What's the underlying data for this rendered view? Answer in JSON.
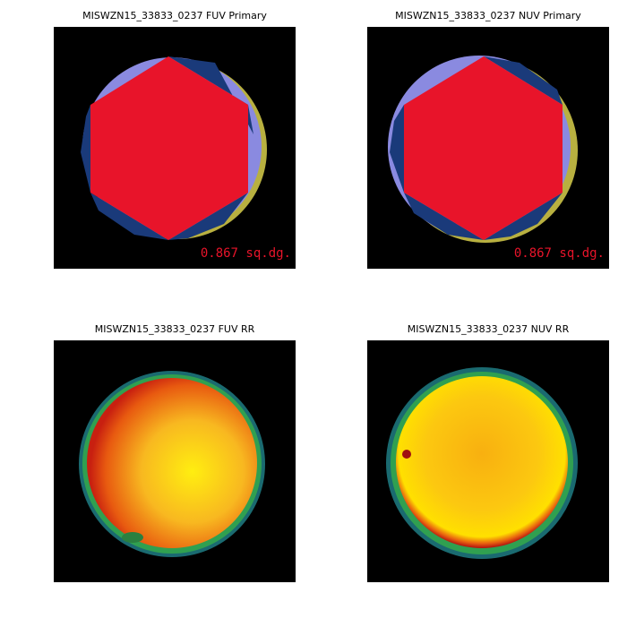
{
  "panels": [
    {
      "title": "MISWZN15_33833_0237 FUV Primary",
      "label": "0.867 sq.dg."
    },
    {
      "title": "MISWZN15_33833_0237 NUV Primary",
      "label": "0.867 sq.dg."
    },
    {
      "title": "MISWZN15_33833_0237 FUV RR"
    },
    {
      "title": "MISWZN15_33833_0237 NUV RR"
    }
  ]
}
